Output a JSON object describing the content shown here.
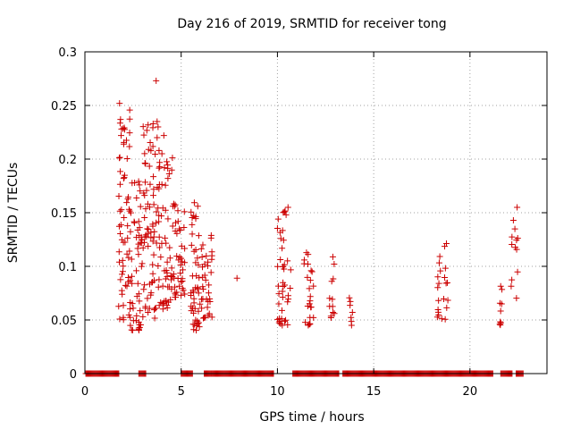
{
  "chart_data": {
    "type": "scatter",
    "title": "Day 216 of 2019, SRMTID for receiver tong",
    "xlabel": "GPS time / hours",
    "ylabel": "SRMTID / TECUs",
    "xlim": [
      0,
      24
    ],
    "ylim": [
      0,
      0.3
    ],
    "xticks": [
      0,
      5,
      10,
      15,
      20
    ],
    "yticks": [
      0,
      0.05,
      0.1,
      0.15,
      0.2,
      0.25,
      0.3
    ],
    "ytick_labels": [
      "0",
      "0.05",
      "0.1",
      "0.15",
      "0.2",
      "0.25",
      "0.3"
    ],
    "grid": true,
    "marker": "+",
    "marker_color": "#cc0000",
    "zero_ranges": [
      [
        0.05,
        1.8
      ],
      [
        2.8,
        3.2
      ],
      [
        5.0,
        5.6
      ],
      [
        6.2,
        6.6
      ],
      [
        6.6,
        9.8
      ],
      [
        10.8,
        13.2
      ],
      [
        13.4,
        21.2
      ],
      [
        21.6,
        22.2
      ],
      [
        22.4,
        22.8
      ]
    ],
    "clusters": [
      {
        "x": [
          1.75,
          2.35
        ],
        "y": [
          0.05,
          0.25
        ],
        "n": 60
      },
      {
        "x": [
          2.35,
          3.0
        ],
        "y": [
          0.04,
          0.18
        ],
        "n": 50
      },
      {
        "x": [
          3.0,
          3.8
        ],
        "y": [
          0.05,
          0.24
        ],
        "n": 70
      },
      {
        "x": [
          3.8,
          4.6
        ],
        "y": [
          0.06,
          0.21
        ],
        "n": 60
      },
      {
        "x": [
          4.6,
          5.2
        ],
        "y": [
          0.07,
          0.16
        ],
        "n": 40
      },
      {
        "x": [
          5.5,
          6.0
        ],
        "y": [
          0.04,
          0.16
        ],
        "n": 45
      },
      {
        "x": [
          6.0,
          6.6
        ],
        "y": [
          0.05,
          0.14
        ],
        "n": 35
      },
      {
        "x": [
          10.0,
          10.7
        ],
        "y": [
          0.045,
          0.155
        ],
        "n": 40
      },
      {
        "x": [
          11.3,
          11.9
        ],
        "y": [
          0.045,
          0.115
        ],
        "n": 22
      },
      {
        "x": [
          12.7,
          13.1
        ],
        "y": [
          0.05,
          0.115
        ],
        "n": 12
      },
      {
        "x": [
          13.7,
          13.9
        ],
        "y": [
          0.045,
          0.08
        ],
        "n": 6
      },
      {
        "x": [
          18.3,
          18.9
        ],
        "y": [
          0.05,
          0.125
        ],
        "n": 22
      },
      {
        "x": [
          21.5,
          21.8
        ],
        "y": [
          0.045,
          0.085
        ],
        "n": 8
      },
      {
        "x": [
          22.1,
          22.5
        ],
        "y": [
          0.07,
          0.155
        ],
        "n": 12
      }
    ],
    "points": [
      [
        1.8,
        0.252
      ],
      [
        1.85,
        0.237
      ],
      [
        1.9,
        0.228
      ],
      [
        1.88,
        0.222
      ],
      [
        3.7,
        0.273
      ],
      [
        3.75,
        0.235
      ],
      [
        3.8,
        0.23
      ],
      [
        3.75,
        0.22
      ],
      [
        3.85,
        0.208
      ],
      [
        4.0,
        0.205
      ],
      [
        4.1,
        0.222
      ],
      [
        22.45,
        0.155
      ],
      [
        10.55,
        0.155
      ],
      [
        10.45,
        0.148
      ],
      [
        7.9,
        0.089
      ],
      [
        11.8,
        0.095
      ],
      [
        2.85,
        0.043
      ],
      [
        2.8,
        0.048
      ],
      [
        5.65,
        0.041
      ],
      [
        5.62,
        0.046
      ],
      [
        10.25,
        0.045
      ],
      [
        13.85,
        0.045
      ],
      [
        21.55,
        0.046
      ],
      [
        11.6,
        0.045
      ]
    ]
  }
}
